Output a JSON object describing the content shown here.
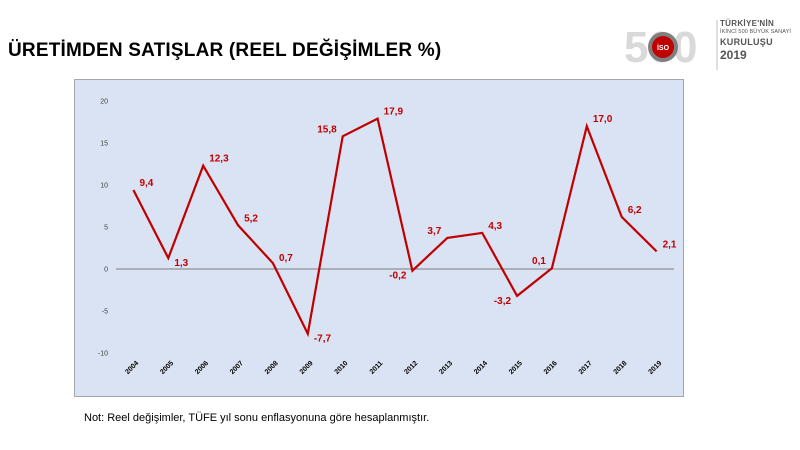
{
  "page": {
    "title": "ÜRETİMDEN SATIŞLAR (REEL DEĞİŞİMLER %)",
    "note": "Not: Reel değişimler, TÜFE yıl sonu enflasyonuna göre hesaplanmıştır."
  },
  "logo": {
    "line1": "TÜRKİYE'NİN",
    "line2": "İKİNCİ 500 BÜYÜK SANAYİ",
    "line3": "KURULUŞU",
    "line4": "2019",
    "badge": "İSO",
    "number": "500"
  },
  "colors": {
    "line": "#c00000",
    "plot_bg": "#dae3f3",
    "border": "#a6a6a6"
  },
  "chart_data": {
    "type": "line",
    "categories": [
      "2004",
      "2005",
      "2006",
      "2007",
      "2008",
      "2009",
      "2010",
      "2011",
      "2012",
      "2013",
      "2014",
      "2015",
      "2016",
      "2017",
      "2018",
      "2019"
    ],
    "values": [
      9.4,
      1.3,
      12.3,
      5.2,
      0.7,
      -7.7,
      15.8,
      17.9,
      -0.2,
      3.7,
      4.3,
      -3.2,
      0.1,
      17.0,
      6.2,
      2.1
    ],
    "data_labels": [
      "9,4",
      "1,3",
      "12,3",
      "5,2",
      "0,7",
      "-7,7",
      "15,8",
      "17,9",
      "-0,2",
      "3,7",
      "4,3",
      "-3,2",
      "0,1",
      "17,0",
      "6,2",
      "2,1"
    ],
    "y_ticks": [
      20,
      15,
      10,
      5,
      0,
      -5,
      -10
    ],
    "y_tick_labels": [
      "20",
      "15",
      "10",
      "5",
      "0",
      "-5",
      "-10"
    ],
    "ylim": [
      -10,
      20
    ],
    "grid": false,
    "legend": "none",
    "title": "",
    "xlabel": "",
    "ylabel": ""
  }
}
